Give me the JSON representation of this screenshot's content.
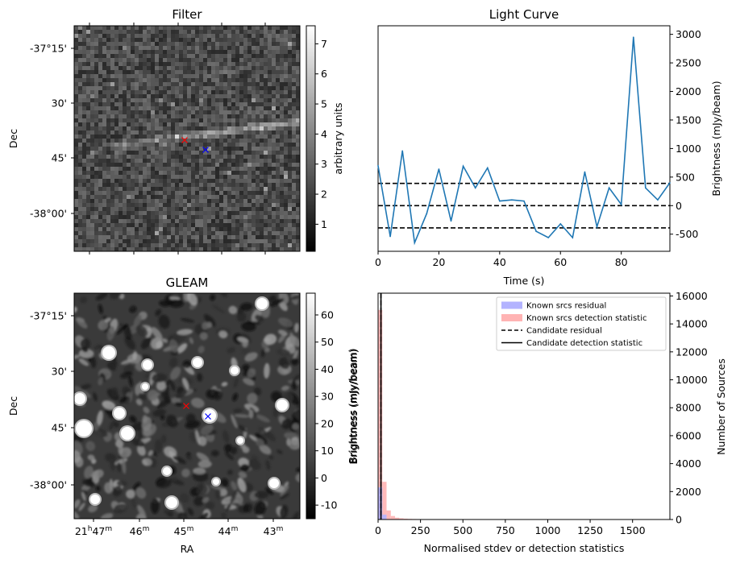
{
  "figure": {
    "panels": {
      "filter": {
        "title": "Filter",
        "ylabel": "Dec",
        "dec_ticks": [
          "-37°15'",
          "30'",
          "45'",
          "-38°00'"
        ],
        "colorbar": {
          "label": "arbitrary units",
          "ticks": [
            "1",
            "2",
            "3",
            "4",
            "5",
            "6",
            "7"
          ],
          "range": [
            0.1,
            7.6
          ]
        }
      },
      "light_curve": {
        "title": "Light Curve",
        "xlabel": "Time (s)",
        "ylabel": "Brightness (mJy/beam)",
        "xticks": [
          "0",
          "20",
          "40",
          "60",
          "80"
        ],
        "yticks": [
          "-500",
          "0",
          "500",
          "1000",
          "1500",
          "2000",
          "2500",
          "3000"
        ]
      },
      "gleam": {
        "title": "GLEAM",
        "ylabel": "Dec",
        "xlabel": "RA",
        "dec_ticks": [
          "-37°15'",
          "30'",
          "45'",
          "-38°00'"
        ],
        "ra_ticks": [
          {
            "main": "21",
            "h": "h",
            "min": "47",
            "m": "m"
          },
          {
            "main": "46",
            "m": "m"
          },
          {
            "main": "45",
            "m": "m"
          },
          {
            "main": "44",
            "m": "m"
          },
          {
            "main": "43",
            "m": "m"
          }
        ],
        "colorbar": {
          "label": "Brightness (mJy/beam)",
          "ticks": [
            "-10",
            "0",
            "10",
            "20",
            "30",
            "40",
            "50",
            "60"
          ],
          "range": [
            -15,
            68
          ]
        }
      },
      "histogram": {
        "xlabel": "Normalised stdev or detection statistics",
        "ylabel_left": "Brightness (mJy/beam)",
        "ylabel_right": "Number of Sources",
        "xticks": [
          "0",
          "250",
          "500",
          "750",
          "1000",
          "1250",
          "1500"
        ],
        "yticks": [
          "0",
          "2000",
          "4000",
          "6000",
          "8000",
          "10000",
          "12000",
          "14000",
          "16000"
        ],
        "legend": [
          {
            "label": "Known srcs residual",
            "style": "patch",
            "color": "#b3b3ff"
          },
          {
            "label": "Known srcs detection statistic",
            "style": "patch",
            "color": "#ffb3b3"
          },
          {
            "label": "Candidate residual",
            "style": "dashed",
            "color": "#000000"
          },
          {
            "label": "Candidate detection statistic",
            "style": "solid",
            "color": "#000000"
          }
        ]
      }
    },
    "markers": {
      "red_color": "#ff0000",
      "blue_color": "#0000ff"
    }
  },
  "chart_data": [
    {
      "type": "heatmap",
      "title": "Filter",
      "ylabel": "Dec",
      "colorbar_label": "arbitrary units",
      "colorbar_range": [
        0.1,
        7.6
      ],
      "colormap": "gray",
      "markers": [
        {
          "symbol": "x",
          "color": "red",
          "dec_offset_arcmin": -40
        },
        {
          "symbol": "x",
          "color": "blue",
          "dec_offset_arcmin": -42
        }
      ]
    },
    {
      "type": "line",
      "title": "Light Curve",
      "xlabel": "Time (s)",
      "ylabel": "Brightness (mJy/beam)",
      "xlim": [
        0,
        96
      ],
      "ylim": [
        -800,
        3150
      ],
      "y_axis_side": "right",
      "x": [
        0,
        4,
        8,
        12,
        16,
        20,
        24,
        28,
        32,
        36,
        40,
        44,
        48,
        52,
        56,
        60,
        64,
        68,
        72,
        76,
        80,
        84,
        88,
        92,
        96
      ],
      "series": [
        {
          "values": [
            700,
            -540,
            960,
            -650,
            -140,
            640,
            -270,
            690,
            310,
            660,
            80,
            100,
            80,
            -450,
            -560,
            -320,
            -560,
            590,
            -370,
            310,
            20,
            2950,
            310,
            100,
            400
          ],
          "color": "#1f77b4"
        }
      ],
      "hlines": [
        {
          "y": 390,
          "style": "dashed"
        },
        {
          "y": 0,
          "style": "dashed"
        },
        {
          "y": -390,
          "style": "dashed"
        }
      ]
    },
    {
      "type": "heatmap",
      "title": "GLEAM",
      "xlabel": "RA",
      "ylabel": "Dec",
      "colorbar_label": "Brightness (mJy/beam)",
      "colorbar_range": [
        -15,
        68
      ],
      "colormap": "gray"
    },
    {
      "type": "bar",
      "xlabel": "Normalised stdev or detection statistics",
      "ylabel": "Number of Sources",
      "xlim": [
        0,
        1720
      ],
      "ylim": [
        0,
        16200
      ],
      "series": [
        {
          "name": "Known srcs residual",
          "bin_width": 25,
          "values": [
            {
              "x": 0,
              "y": 2300
            },
            {
              "x": 25,
              "y": 350
            }
          ]
        },
        {
          "name": "Known srcs detection statistic",
          "bin_width": 25,
          "values": [
            {
              "x": 0,
              "y": 15000
            },
            {
              "x": 25,
              "y": 2700
            },
            {
              "x": 50,
              "y": 650
            },
            {
              "x": 75,
              "y": 250
            },
            {
              "x": 100,
              "y": 130
            },
            {
              "x": 125,
              "y": 90
            },
            {
              "x": 150,
              "y": 60
            },
            {
              "x": 175,
              "y": 45
            },
            {
              "x": 200,
              "y": 35
            },
            {
              "x": 225,
              "y": 30
            },
            {
              "x": 250,
              "y": 25
            },
            {
              "x": 300,
              "y": 20
            },
            {
              "x": 400,
              "y": 15
            },
            {
              "x": 500,
              "y": 12
            },
            {
              "x": 600,
              "y": 10
            },
            {
              "x": 800,
              "y": 8
            },
            {
              "x": 1000,
              "y": 6
            },
            {
              "x": 1300,
              "y": 5
            },
            {
              "x": 1600,
              "y": 4
            }
          ]
        }
      ],
      "vlines": [
        {
          "name": "Candidate residual",
          "x": 17,
          "style": "dashed"
        },
        {
          "name": "Candidate detection statistic",
          "x": 17,
          "style": "solid"
        }
      ]
    }
  ]
}
